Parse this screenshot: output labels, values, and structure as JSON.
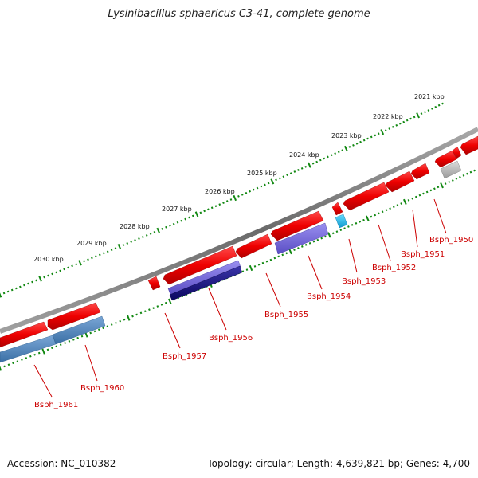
{
  "title": "Lysinibacillus sphaericus C3-41, complete genome",
  "footer": {
    "accession": "Accession: NC_010382",
    "stats": "Topology: circular; Length: 4,639,821 bp; Genes: 4,700"
  },
  "colors": {
    "forward_cds": "#ee0000",
    "blue_steel": "#4a7fb5",
    "blue_slate": "#6f62d6",
    "blue_navy": "#1a1478",
    "cyan": "#22bbee",
    "gray": "#b8b8b8",
    "label": "#cc0000",
    "ticks": "#118811",
    "backbone": "#808080"
  },
  "kbp_ticks": [
    "2021 kbp",
    "2022 kbp",
    "2023 kbp",
    "2024 kbp",
    "2025 kbp",
    "2026 kbp",
    "2027 kbp",
    "2028 kbp",
    "2029 kbp",
    "2030 kbp"
  ],
  "gene_labels": [
    "Bsph_1950",
    "Bsph_1951",
    "Bsph_1952",
    "Bsph_1953",
    "Bsph_1954",
    "Bsph_1955",
    "Bsph_1956",
    "Bsph_1957",
    "Bsph_1960",
    "Bsph_1961"
  ]
}
